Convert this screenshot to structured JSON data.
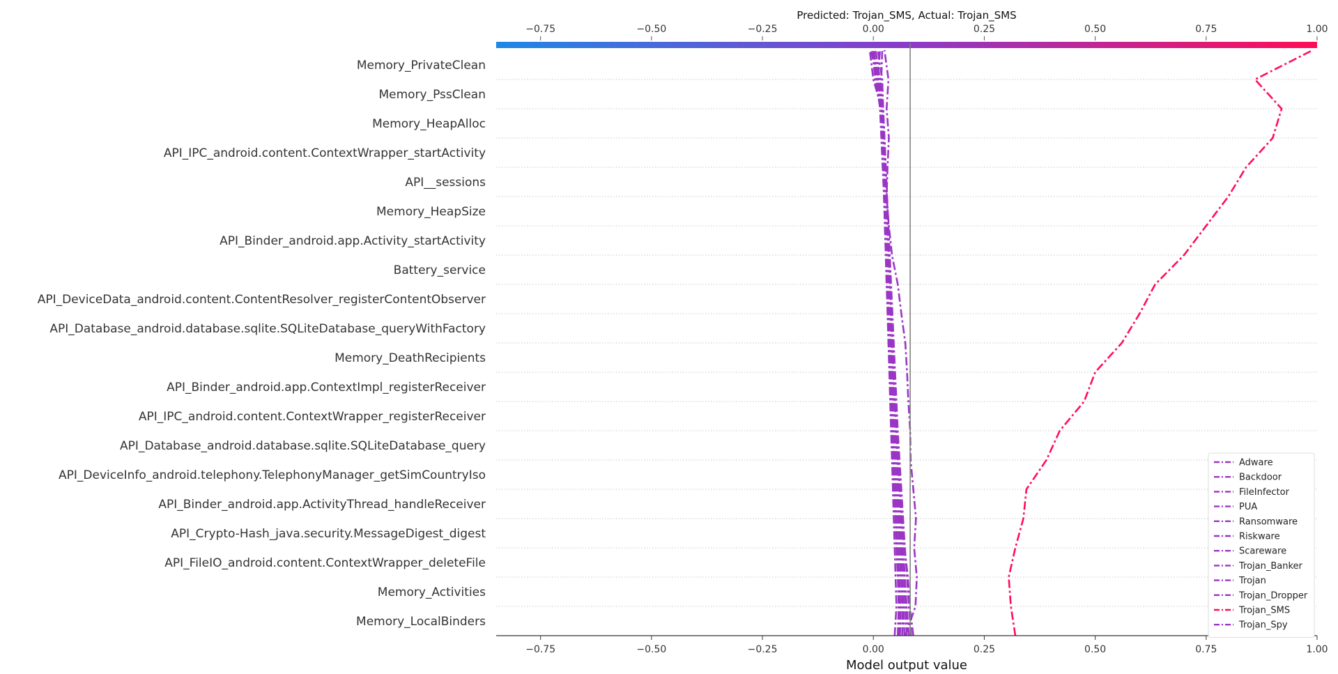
{
  "chart_data": {
    "type": "line",
    "chart_kind": "decision_plot",
    "title": "Predicted: Trojan_SMS, Actual: Trojan_SMS",
    "xlabel": "Model output value",
    "xlim": [
      -0.85,
      1.0
    ],
    "xticks": [
      "−0.75",
      "−0.50",
      "−0.25",
      "0.00",
      "0.25",
      "0.50",
      "0.75",
      "1.00"
    ],
    "xtick_values": [
      -0.75,
      -0.5,
      -0.25,
      0.0,
      0.25,
      0.5,
      0.75,
      1.0
    ],
    "base_value": 0.083,
    "grid": "dotted horizontal per feature",
    "colorbar": {
      "from": "#1e88e5",
      "to": "#ff0d57",
      "range": [
        -0.85,
        1.0
      ]
    },
    "legend": {
      "placement": "lower-right"
    },
    "features": [
      "Memory_PrivateClean",
      "Memory_PssClean",
      "Memory_HeapAlloc",
      "API_IPC_android.content.ContextWrapper_startActivity",
      "API__sessions",
      "Memory_HeapSize",
      "API_Binder_android.app.Activity_startActivity",
      "Battery_service",
      "API_DeviceData_android.content.ContentResolver_registerContentObserver",
      "API_Database_android.database.sqlite.SQLiteDatabase_queryWithFactory",
      "Memory_DeathRecipients",
      "API_Binder_android.app.ContextImpl_registerReceiver",
      "API_IPC_android.content.ContextWrapper_registerReceiver",
      "API_Database_android.database.sqlite.SQLiteDatabase_query",
      "API_DeviceInfo_android.telephony.TelephonyManager_getSimCountryIso",
      "API_Binder_android.app.ActivityThread_handleReceiver",
      "API_Crypto-Hash_java.security.MessageDigest_digest",
      "API_FileIO_android.content.ContextWrapper_deleteFile",
      "Memory_Activities",
      "Memory_LocalBinders"
    ],
    "series": [
      {
        "name": "Adware",
        "color": "#9b35c6",
        "values": [
          0.09,
          0.082,
          0.078,
          0.07,
          0.065,
          0.06,
          0.055,
          0.052,
          0.048,
          0.045,
          0.042,
          0.04,
          0.038,
          0.035,
          0.032,
          0.03,
          0.028,
          0.025,
          0.022,
          0.02,
          0.01
        ]
      },
      {
        "name": "Backdoor",
        "color": "#9b35c6",
        "values": [
          0.06,
          0.062,
          0.058,
          0.055,
          0.052,
          0.05,
          0.047,
          0.045,
          0.043,
          0.04,
          0.038,
          0.036,
          0.034,
          0.032,
          0.03,
          0.028,
          0.025,
          0.022,
          0.02,
          0.015,
          0.005
        ]
      },
      {
        "name": "FileInfector",
        "color": "#9b35c6",
        "values": [
          0.07,
          0.068,
          0.064,
          0.061,
          0.058,
          0.055,
          0.052,
          0.049,
          0.046,
          0.044,
          0.041,
          0.039,
          0.036,
          0.034,
          0.031,
          0.029,
          0.026,
          0.023,
          0.02,
          0.012,
          0.0
        ]
      },
      {
        "name": "PUA",
        "color": "#9b35c6",
        "values": [
          0.08,
          0.075,
          0.071,
          0.067,
          0.063,
          0.06,
          0.056,
          0.053,
          0.05,
          0.047,
          0.044,
          0.041,
          0.038,
          0.036,
          0.033,
          0.03,
          0.027,
          0.024,
          0.021,
          0.01,
          0.015
        ]
      },
      {
        "name": "Ransomware",
        "color": "#9b35c6",
        "values": [
          0.055,
          0.057,
          0.055,
          0.052,
          0.05,
          0.047,
          0.045,
          0.042,
          0.04,
          0.037,
          0.035,
          0.033,
          0.03,
          0.028,
          0.026,
          0.024,
          0.021,
          0.018,
          0.015,
          0.008,
          -0.005
        ]
      },
      {
        "name": "Riskware",
        "color": "#9b35c6",
        "values": [
          0.065,
          0.066,
          0.062,
          0.059,
          0.056,
          0.053,
          0.05,
          0.048,
          0.045,
          0.042,
          0.04,
          0.037,
          0.035,
          0.032,
          0.03,
          0.027,
          0.024,
          0.022,
          0.018,
          0.005,
          0.002
        ]
      },
      {
        "name": "Scareware",
        "color": "#9b35c6",
        "values": [
          0.075,
          0.072,
          0.068,
          0.064,
          0.061,
          0.058,
          0.054,
          0.051,
          0.048,
          0.045,
          0.043,
          0.04,
          0.037,
          0.034,
          0.031,
          0.028,
          0.026,
          0.023,
          0.019,
          0.0,
          -0.008
        ]
      },
      {
        "name": "Trojan_Banker",
        "color": "#9b35c6",
        "values": [
          0.085,
          0.08,
          0.076,
          0.071,
          0.067,
          0.063,
          0.059,
          0.055,
          0.052,
          0.049,
          0.046,
          0.043,
          0.04,
          0.037,
          0.034,
          0.031,
          0.028,
          0.025,
          0.022,
          0.018,
          0.02
        ]
      },
      {
        "name": "Trojan",
        "color": "#9b35c6",
        "values": [
          0.048,
          0.052,
          0.05,
          0.048,
          0.046,
          0.044,
          0.042,
          0.04,
          0.038,
          0.036,
          0.034,
          0.032,
          0.03,
          0.028,
          0.026,
          0.024,
          0.022,
          0.02,
          0.018,
          0.01,
          0.0
        ]
      },
      {
        "name": "Trojan_Dropper",
        "color": "#9b35c6",
        "values": [
          0.072,
          0.095,
          0.098,
          0.092,
          0.096,
          0.09,
          0.084,
          0.083,
          0.079,
          0.076,
          0.072,
          0.063,
          0.055,
          0.042,
          0.035,
          0.03,
          0.032,
          0.035,
          0.03,
          0.034,
          0.025
        ]
      },
      {
        "name": "Trojan_SMS",
        "color": "#ff0d57",
        "values": [
          0.32,
          0.31,
          0.305,
          0.32,
          0.338,
          0.345,
          0.39,
          0.42,
          0.475,
          0.5,
          0.56,
          0.6,
          0.635,
          0.7,
          0.75,
          0.8,
          0.84,
          0.9,
          0.92,
          0.86,
          0.99
        ]
      },
      {
        "name": "Trojan_Spy",
        "color": "#9b35c6",
        "values": [
          0.058,
          0.06,
          0.057,
          0.054,
          0.051,
          0.048,
          0.046,
          0.043,
          0.041,
          0.039,
          0.036,
          0.034,
          0.031,
          0.029,
          0.027,
          0.025,
          0.022,
          0.019,
          0.016,
          0.004,
          -0.002
        ]
      }
    ]
  }
}
